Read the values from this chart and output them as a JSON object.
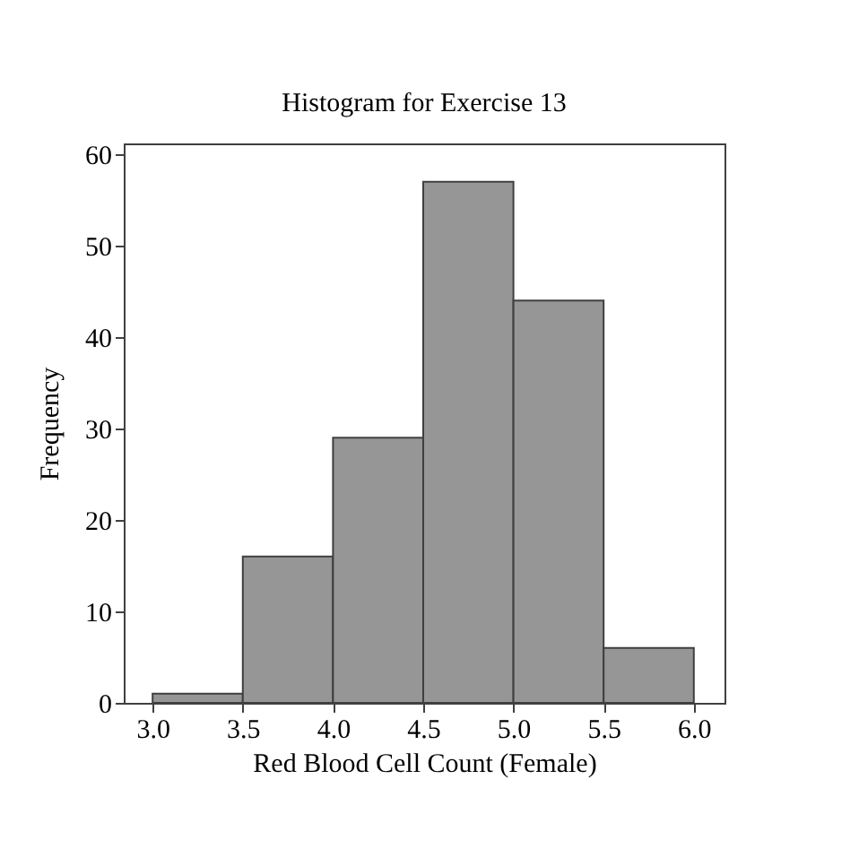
{
  "chart_data": {
    "type": "histogram",
    "title": "Histogram for Exercise 13",
    "xlabel": "Red Blood Cell Count (Female)",
    "ylabel": "Frequency",
    "bins": [
      3.0,
      3.5,
      4.0,
      4.5,
      5.0,
      5.5,
      6.0
    ],
    "values": [
      1,
      16,
      29,
      57,
      44,
      6
    ],
    "color": "#969696",
    "xlim": [
      2.84,
      6.17
    ],
    "xticks": [
      {
        "value": 3,
        "label": "3.0"
      },
      3.5,
      {
        "value": 4,
        "label": "4.0"
      },
      4.5,
      {
        "value": 5,
        "label": "5.0"
      },
      5.5,
      {
        "value": 6,
        "label": "6.0"
      }
    ],
    "ylim": [
      0,
      61.2
    ],
    "yticks": [
      0,
      10,
      20,
      30,
      40,
      50,
      60
    ],
    "grid": false
  }
}
